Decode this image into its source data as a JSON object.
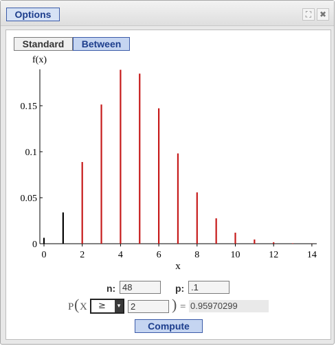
{
  "window": {
    "options_label": "Options",
    "expand_glyph": "⛶",
    "close_glyph": "✖"
  },
  "tabs": {
    "standard": "Standard",
    "between": "Between"
  },
  "params": {
    "n_label": "n:",
    "n_value": "48",
    "p_label": "p:",
    "p_value": ".1"
  },
  "probability": {
    "P": "P",
    "open_paren": "(",
    "X": "X",
    "operator": "≥",
    "dropdown_glyph": "▾",
    "bound": "2",
    "close_paren": ")",
    "equals": "=",
    "result": "0.95970299"
  },
  "compute_label": "Compute",
  "chart_data": {
    "type": "bar",
    "ylabel": "f(x)",
    "xlabel": "x",
    "x": [
      0,
      1,
      2,
      3,
      4,
      5,
      6,
      7,
      8,
      9,
      10,
      11,
      12,
      13,
      14
    ],
    "values": [
      0.0064,
      0.034,
      0.0888,
      0.1513,
      0.1891,
      0.1849,
      0.1472,
      0.0981,
      0.0558,
      0.0276,
      0.012,
      0.0046,
      0.0016,
      0.0005,
      0.0001
    ],
    "highlight_from": 2,
    "colors": {
      "normal": "#000000",
      "highlight": "#c61a1a"
    },
    "xticks": [
      0,
      2,
      4,
      6,
      8,
      10,
      12,
      14
    ],
    "yticks": [
      0,
      0.05,
      0.1,
      0.15
    ],
    "ytick_labels": [
      "0",
      "0.05",
      "0.1",
      "0.15"
    ],
    "xlim": [
      -0.2,
      14.3
    ],
    "ylim": [
      0,
      0.19
    ]
  }
}
